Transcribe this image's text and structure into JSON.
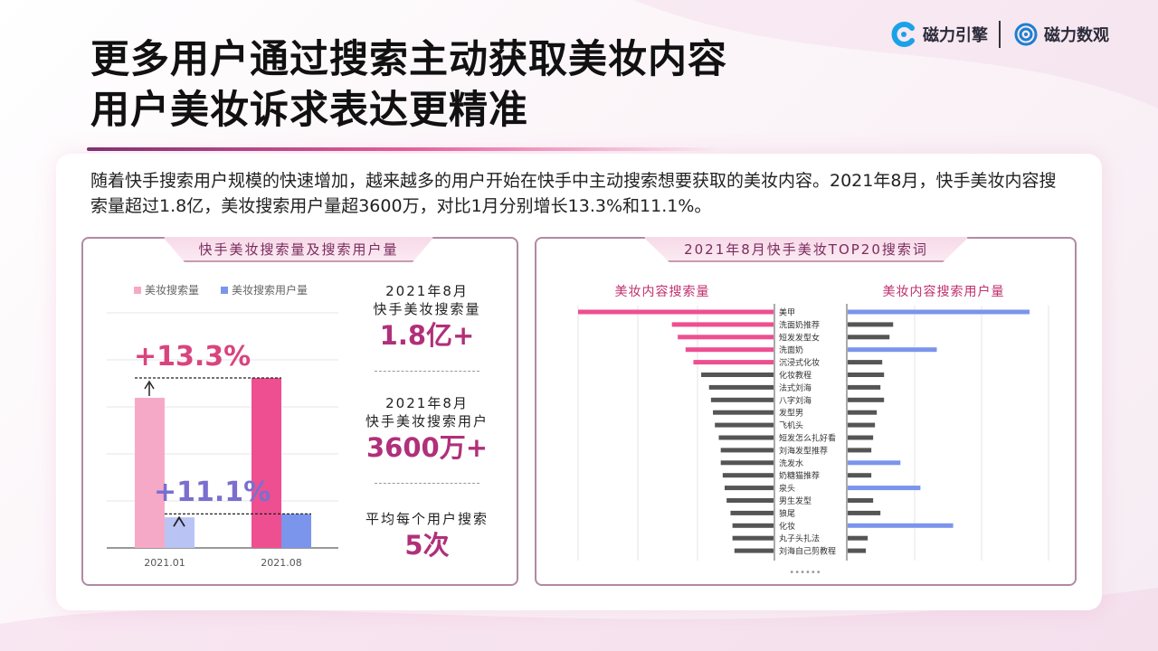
{
  "title": {
    "line1": "更多用户通过搜索主动获取美妆内容",
    "line2": "用户美妆诉求表达更精准"
  },
  "logos": {
    "logo1": "磁力引擎",
    "logo2": "磁力数观"
  },
  "intro": "随着快手搜索用户规模的快速增加，越来越多的用户开始在快手中主动搜索想要获取的美妆内容。2021年8月，快手美妆内容搜索量超过1.8亿，美妆搜索用户量超3600万，对比1月分别增长13.3%和11.1%。",
  "left_panel": {
    "tab": "快手美妆搜索量及搜索用户量",
    "growth_search": "+13.3%",
    "growth_users": "+11.1%",
    "stats": [
      {
        "label1": "2021年8月",
        "label2": "快手美妆搜索量",
        "value": "1.8亿+"
      },
      {
        "label1": "2021年8月",
        "label2": "快手美妆搜索用户",
        "value": "3600万+"
      },
      {
        "label1": "",
        "label2": "平均每个用户搜索",
        "value": "5次"
      }
    ]
  },
  "right_panel": {
    "tab": "2021年8月快手美妆TOP20搜索词",
    "left_header": "美妆内容搜索量",
    "right_header": "美妆内容搜索用户量",
    "more": "••••••"
  },
  "colors": {
    "pink_light": "#f6a9c6",
    "pink": "#ee4f90",
    "blue_light": "#b9c4f5",
    "blue": "#7b95ec",
    "gray": "#555555",
    "accent": "#b0307a"
  },
  "chart_data": [
    {
      "type": "bar",
      "categories": [
        "2021.01",
        "2021.08"
      ],
      "series": [
        {
          "name": "美妆搜索量",
          "values": [
            1.59,
            1.8
          ]
        },
        {
          "name": "美妆搜索用户量",
          "values": [
            0.324,
            0.36
          ]
        }
      ],
      "legend": "top",
      "grid": true
    },
    {
      "type": "bar",
      "orientation": "horizontal-butterfly",
      "categories": [
        "美甲",
        "洗面奶推荐",
        "短发发型女",
        "洗面奶",
        "沉浸式化妆",
        "化妆教程",
        "法式刘海",
        "八字刘海",
        "发型男",
        "飞机头",
        "短发怎么扎好看",
        "刘海发型推荐",
        "洗发水",
        "奶糖猫推荐",
        "泉头",
        "男生发型",
        "狼尾",
        "化妆",
        "丸子头扎法",
        "刘海自己剪教程"
      ],
      "series": [
        {
          "name": "美妆内容搜索量",
          "values": [
            100,
            52,
            49,
            45,
            41,
            37,
            33,
            32,
            31,
            30,
            28,
            27,
            27,
            26,
            25,
            24,
            22,
            21,
            21,
            20
          ]
        },
        {
          "name": "美妆内容搜索用户量",
          "values": [
            100,
            25,
            23,
            49,
            19,
            20,
            18,
            20,
            16,
            15,
            14,
            13,
            29,
            13,
            40,
            14,
            18,
            58,
            11,
            10
          ]
        }
      ],
      "highlight": {
        "left": [
          "美甲",
          "洗面奶推荐",
          "短发发型女",
          "洗面奶",
          "沉浸式化妆"
        ],
        "right": [
          "美甲",
          "洗面奶",
          "洗发水",
          "泉头",
          "化妆"
        ]
      },
      "grid": true
    }
  ]
}
